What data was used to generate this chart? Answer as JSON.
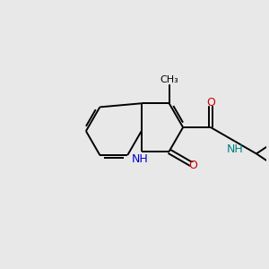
{
  "bg_color": "#e8e8e8",
  "bond_color": "#000000",
  "atom_colors": {
    "N": "#0000cc",
    "O": "#cc0000",
    "NH_amide": "#008080"
  },
  "bond_lw": 1.4,
  "font_size": 9.0,
  "figsize": [
    3.0,
    3.0
  ],
  "dpi": 100
}
